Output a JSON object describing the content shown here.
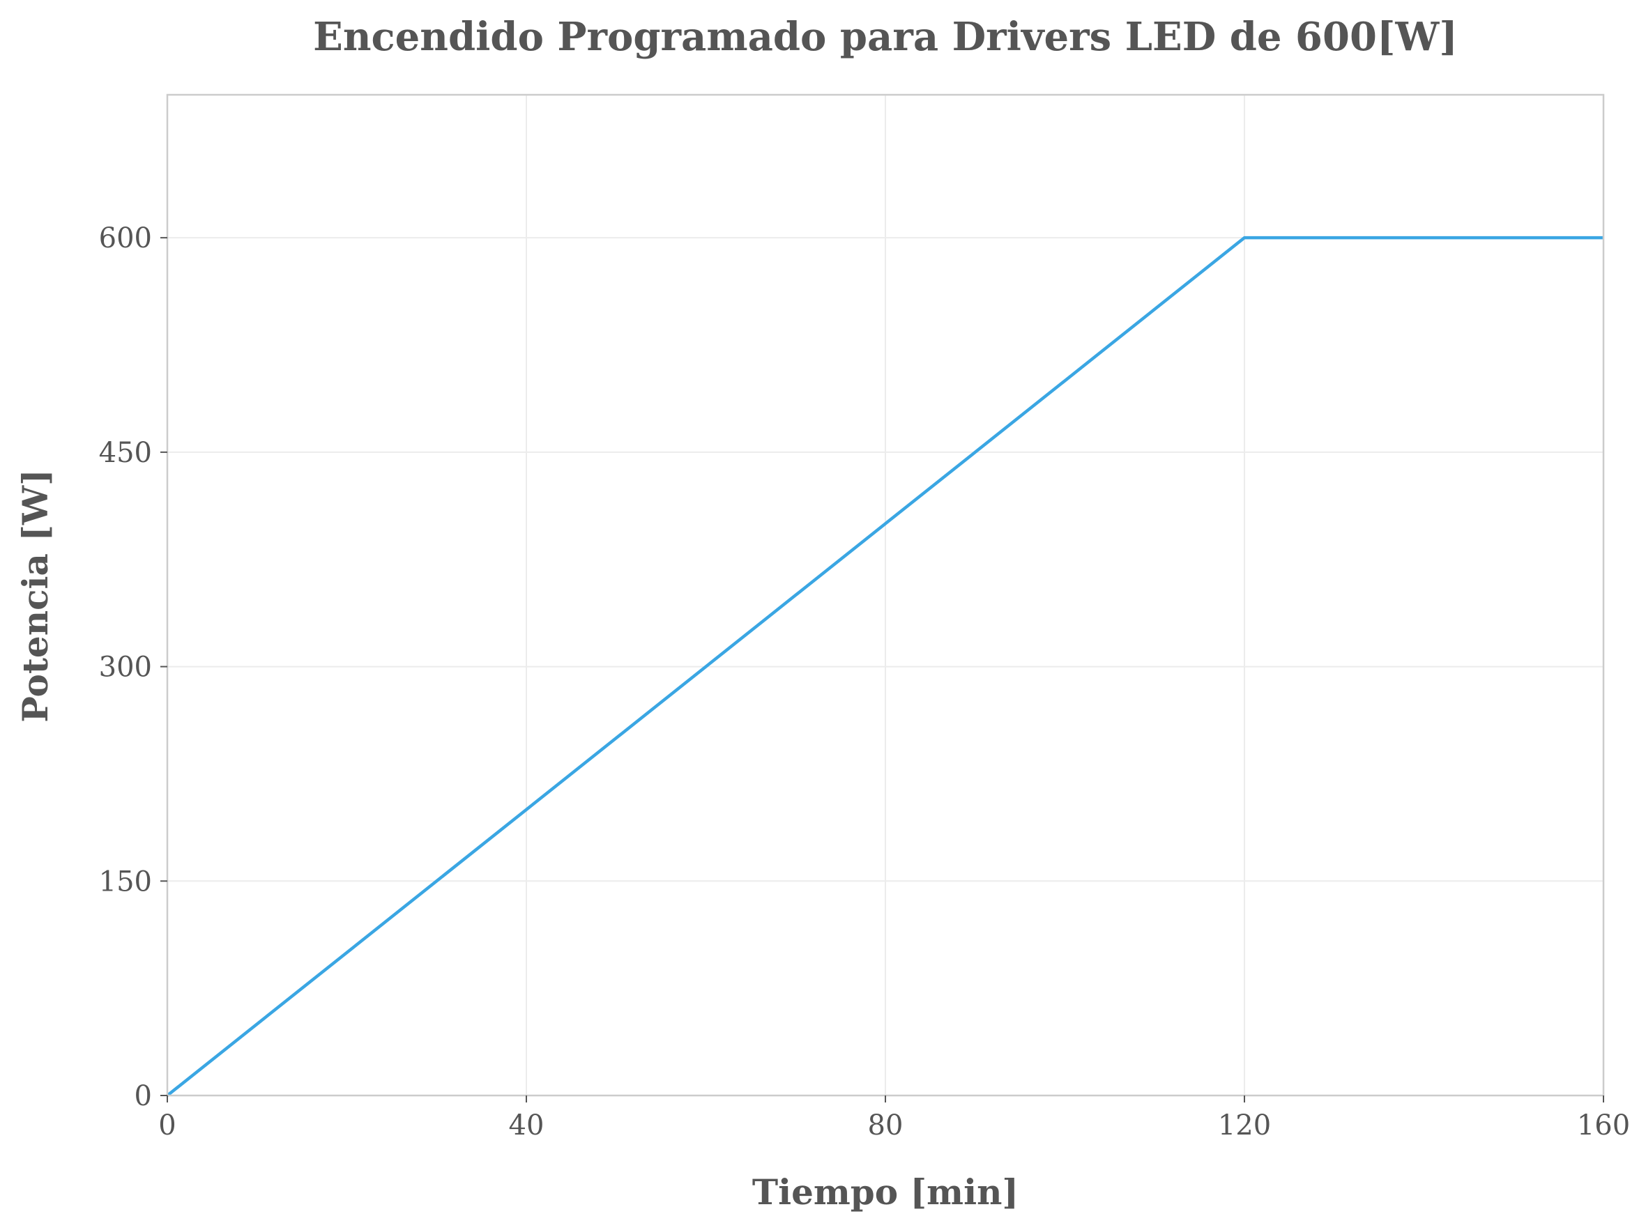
{
  "chart_data": {
    "type": "line",
    "title": "Encendido Programado para Drivers LED de 600[W]",
    "xlabel": "Tiempo [min]",
    "ylabel": "Potencia [W]",
    "xlim": [
      0,
      160
    ],
    "ylim": [
      0,
      700
    ],
    "x_ticks": [
      0,
      40,
      80,
      120,
      160
    ],
    "y_ticks": [
      0,
      150,
      300,
      450,
      600
    ],
    "x_tick_labels": [
      "0",
      "40",
      "80",
      "120",
      "160"
    ],
    "y_tick_labels": [
      "0",
      "150",
      "300",
      "450",
      "600"
    ],
    "grid": true,
    "series": [
      {
        "color": "#3aa6e3",
        "x": [
          0,
          120,
          160
        ],
        "y": [
          0,
          600,
          600
        ]
      }
    ],
    "colors": {
      "grid": "#ececec",
      "spine": "#cccccc",
      "text": "#555555"
    }
  }
}
